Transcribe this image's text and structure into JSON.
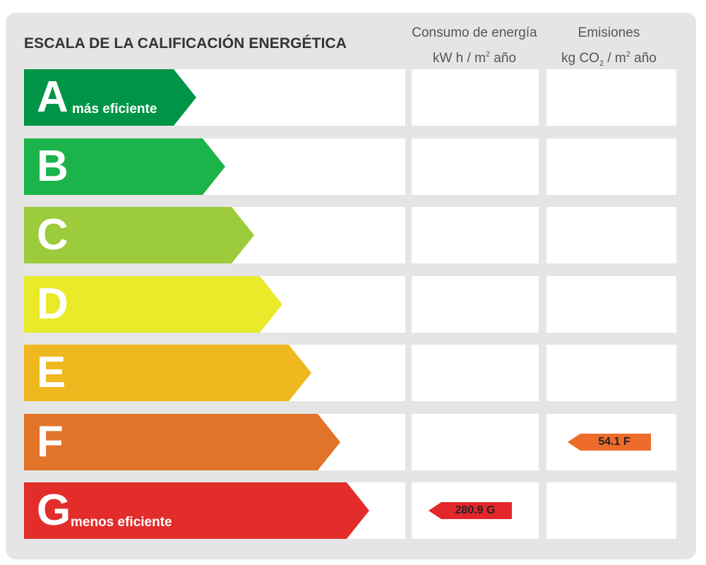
{
  "title": "ESCALA DE LA CALIFICACIÓN ENERGÉTICA",
  "columns": {
    "consumo": {
      "line1": "Consumo de energía",
      "line2_pre": "kW h  / m",
      "line2_sup": "2",
      "line2_post": " año"
    },
    "emisiones": {
      "line1": "Emisiones",
      "line2_pre": "kg CO",
      "line2_sub": "2",
      "line2_mid": "  / m",
      "line2_sup": "2",
      "line2_post": " año"
    }
  },
  "grades": [
    {
      "letter": "A",
      "sublabel": "más eficiente",
      "color": "#009446"
    },
    {
      "letter": "B",
      "sublabel": "",
      "color": "#1cb34a"
    },
    {
      "letter": "C",
      "sublabel": "",
      "color": "#9ccb3b"
    },
    {
      "letter": "D",
      "sublabel": "",
      "color": "#e9ea29"
    },
    {
      "letter": "E",
      "sublabel": "",
      "color": "#efb81f"
    },
    {
      "letter": "F",
      "sublabel": "",
      "color": "#e27429"
    },
    {
      "letter": "G",
      "sublabel": "menos eficiente",
      "color": "#e22d2a"
    }
  ],
  "ratings": {
    "consumo": {
      "value": "280.9 G",
      "grade": "G",
      "color": "#e3262b"
    },
    "emisiones": {
      "value": "54.1 F",
      "grade": "F",
      "color": "#ed6c2b"
    }
  }
}
